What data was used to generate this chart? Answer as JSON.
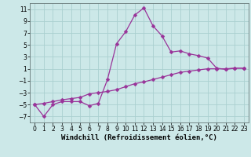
{
  "title": "",
  "xlabel": "Windchill (Refroidissement éolien,°C)",
  "ylabel": "",
  "bg_color": "#cce8e8",
  "grid_color": "#aad0d0",
  "line_color": "#993399",
  "x": [
    0,
    1,
    2,
    3,
    4,
    5,
    6,
    7,
    8,
    9,
    10,
    11,
    12,
    13,
    14,
    15,
    16,
    17,
    18,
    19,
    20,
    21,
    22,
    23
  ],
  "y_main": [
    -5,
    -7,
    -5,
    -4.5,
    -4.5,
    -4.5,
    -5.2,
    -4.8,
    -0.8,
    5.2,
    7.2,
    10.0,
    11.2,
    8.2,
    6.5,
    3.8,
    4.0,
    3.5,
    3.2,
    2.8,
    1.1,
    0.9,
    1.1,
    1.1
  ],
  "y_smooth": [
    -5.0,
    -4.8,
    -4.5,
    -4.2,
    -4.0,
    -3.8,
    -3.2,
    -3.0,
    -2.8,
    -2.5,
    -2.0,
    -1.5,
    -1.2,
    -0.8,
    -0.4,
    0.0,
    0.4,
    0.6,
    0.8,
    1.0,
    1.0,
    1.0,
    1.1,
    1.1
  ],
  "ylim": [
    -8,
    12
  ],
  "xlim": [
    -0.5,
    23.5
  ],
  "yticks": [
    -7,
    -5,
    -3,
    -1,
    1,
    3,
    5,
    7,
    9,
    11
  ],
  "xticks": [
    0,
    1,
    2,
    3,
    4,
    5,
    6,
    7,
    8,
    9,
    10,
    11,
    12,
    13,
    14,
    15,
    16,
    17,
    18,
    19,
    20,
    21,
    22,
    23
  ],
  "marker": "D",
  "markersize": 2.5,
  "linewidth": 0.9,
  "xlabel_fontsize": 6.5,
  "tick_fontsize": 5.5
}
